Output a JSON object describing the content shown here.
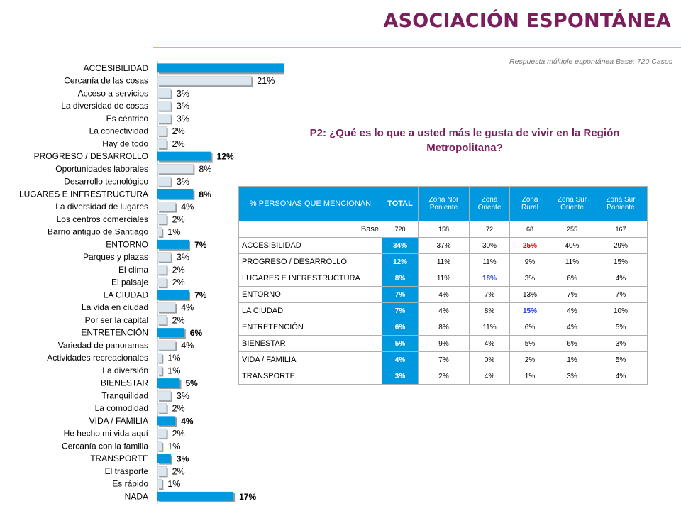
{
  "page": {
    "title": "ASOCIACIÓN ESPONTÁNEA",
    "note": "Respuesta múltiple espontánea Base: 720 Casos",
    "question": "P2: ¿Qué es lo que a usted más le gusta de vivir en la Región Metropolitana?"
  },
  "colors": {
    "title": "#7a1f5c",
    "accent_rule": "#f2c200",
    "category_bar": "#0099e0",
    "sub_bar": "#dbe6ee",
    "highlight_red": "#e00000",
    "highlight_blue": "#1f3fd0"
  },
  "chart_data": {
    "type": "bar",
    "orientation": "horizontal",
    "unit": "%",
    "items": [
      {
        "label": "ACCESIBILIDAD",
        "value": 34,
        "level": "category"
      },
      {
        "label": "Cercanía de las cosas",
        "value": 21,
        "level": "sub"
      },
      {
        "label": "Acceso a servicios",
        "value": 3,
        "level": "sub"
      },
      {
        "label": "La diversidad de cosas",
        "value": 3,
        "level": "sub"
      },
      {
        "label": "Es céntrico",
        "value": 3,
        "level": "sub"
      },
      {
        "label": "La conectividad",
        "value": 2,
        "level": "sub"
      },
      {
        "label": "Hay de todo",
        "value": 2,
        "level": "sub"
      },
      {
        "label": "PROGRESO / DESARROLLO",
        "value": 12,
        "level": "category"
      },
      {
        "label": "Oportunidades laborales",
        "value": 8,
        "level": "sub"
      },
      {
        "label": "Desarrollo tecnológico",
        "value": 3,
        "level": "sub"
      },
      {
        "label": "LUGARES E INFRESTRUCTURA",
        "value": 8,
        "level": "category"
      },
      {
        "label": "La diversidad de lugares",
        "value": 4,
        "level": "sub"
      },
      {
        "label": "Los centros comerciales",
        "value": 2,
        "level": "sub"
      },
      {
        "label": "Barrio antiguo de Santiago",
        "value": 1,
        "level": "sub"
      },
      {
        "label": "ENTORNO",
        "value": 7,
        "level": "category"
      },
      {
        "label": "Parques y plazas",
        "value": 3,
        "level": "sub"
      },
      {
        "label": "El clima",
        "value": 2,
        "level": "sub"
      },
      {
        "label": "El paisaje",
        "value": 2,
        "level": "sub"
      },
      {
        "label": "LA CIUDAD",
        "value": 7,
        "level": "category"
      },
      {
        "label": "La vida en ciudad",
        "value": 4,
        "level": "sub"
      },
      {
        "label": "Por ser la capital",
        "value": 2,
        "level": "sub"
      },
      {
        "label": "ENTRETENCIÓN",
        "value": 6,
        "level": "category"
      },
      {
        "label": "Variedad de panoramas",
        "value": 4,
        "level": "sub"
      },
      {
        "label": "Actividades recreacionales",
        "value": 1,
        "level": "sub"
      },
      {
        "label": "La diversión",
        "value": 1,
        "level": "sub"
      },
      {
        "label": "BIENESTAR",
        "value": 5,
        "level": "category"
      },
      {
        "label": "Tranquilidad",
        "value": 3,
        "level": "sub"
      },
      {
        "label": "La comodidad",
        "value": 2,
        "level": "sub"
      },
      {
        "label": "VIDA / FAMILIA",
        "value": 4,
        "level": "category"
      },
      {
        "label": "He hecho mi vida aquí",
        "value": 2,
        "level": "sub"
      },
      {
        "label": "Cercanía con la familia",
        "value": 1,
        "level": "sub"
      },
      {
        "label": "TRANSPORTE",
        "value": 3,
        "level": "category"
      },
      {
        "label": "El trasporte",
        "value": 2,
        "level": "sub"
      },
      {
        "label": "Es rápido",
        "value": 1,
        "level": "sub"
      },
      {
        "label": "NADA",
        "value": 17,
        "level": "category"
      }
    ]
  },
  "table": {
    "headers": [
      "% PERSONAS QUE MENCIONAN",
      "TOTAL",
      "Zona Nor Poniente",
      "Zona Oriente",
      "Zona Rural",
      "Zona Sur Oriente",
      "Zona Sur Poniente"
    ],
    "base": {
      "label": "Base",
      "values": [
        "720",
        "158",
        "72",
        "68",
        "255",
        "167"
      ]
    },
    "rows": [
      {
        "label": "ACCESIBILIDAD",
        "values": [
          "34%",
          "37%",
          "30%",
          "25%",
          "40%",
          "29%"
        ],
        "highlight": {
          "3": "red"
        }
      },
      {
        "label": "PROGRESO  / DESARROLLO",
        "values": [
          "12%",
          "11%",
          "11%",
          "9%",
          "11%",
          "15%"
        ],
        "highlight": {}
      },
      {
        "label": "LUGARES E INFRESTRUCTURA",
        "values": [
          "8%",
          "11%",
          "18%",
          "3%",
          "6%",
          "4%"
        ],
        "highlight": {
          "2": "blue"
        }
      },
      {
        "label": "ENTORNO",
        "values": [
          "7%",
          "4%",
          "7%",
          "13%",
          "7%",
          "7%"
        ],
        "highlight": {}
      },
      {
        "label": "LA CIUDAD",
        "values": [
          "7%",
          "4%",
          "8%",
          "15%",
          "4%",
          "10%"
        ],
        "highlight": {
          "3": "blue"
        }
      },
      {
        "label": "ENTRETENCIÓN",
        "values": [
          "6%",
          "8%",
          "11%",
          "6%",
          "4%",
          "5%"
        ],
        "highlight": {}
      },
      {
        "label": "BIENESTAR",
        "values": [
          "5%",
          "9%",
          "4%",
          "5%",
          "6%",
          "3%"
        ],
        "highlight": {}
      },
      {
        "label": "VIDA / FAMILIA",
        "values": [
          "4%",
          "7%",
          "0%",
          "2%",
          "1%",
          "5%"
        ],
        "highlight": {}
      },
      {
        "label": "TRANSPORTE",
        "values": [
          "3%",
          "2%",
          "4%",
          "1%",
          "3%",
          "4%"
        ],
        "highlight": {}
      }
    ]
  }
}
